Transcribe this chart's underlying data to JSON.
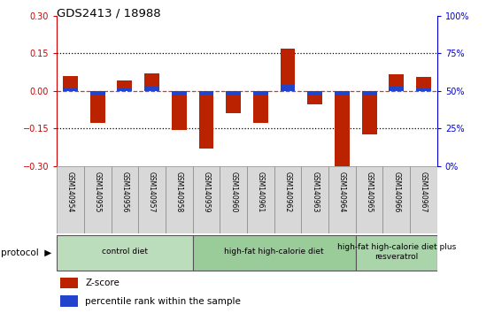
{
  "title": "GDS2413 / 18988",
  "samples": [
    "GSM140954",
    "GSM140955",
    "GSM140956",
    "GSM140957",
    "GSM140958",
    "GSM140959",
    "GSM140960",
    "GSM140961",
    "GSM140962",
    "GSM140963",
    "GSM140964",
    "GSM140965",
    "GSM140966",
    "GSM140967"
  ],
  "z_scores": [
    0.06,
    -0.13,
    0.04,
    0.07,
    -0.155,
    -0.23,
    -0.09,
    -0.13,
    0.17,
    -0.055,
    -0.3,
    -0.175,
    0.065,
    0.055
  ],
  "percentile_vals": [
    0.01,
    -0.02,
    0.01,
    0.015,
    -0.02,
    -0.015,
    -0.02,
    -0.02,
    0.025,
    -0.02,
    -0.02,
    -0.02,
    0.015,
    0.01
  ],
  "bar_color": "#bb2200",
  "blue_color": "#2244cc",
  "zero_line_color": "#dd3333",
  "ylim": [
    -0.3,
    0.3
  ],
  "yticks_left": [
    -0.3,
    -0.15,
    0.0,
    0.15,
    0.3
  ],
  "yticks_right": [
    0,
    25,
    50,
    75,
    100
  ],
  "ytick_right_labels": [
    "0%",
    "25%",
    "50%",
    "75%",
    "100%"
  ],
  "bar_width": 0.55,
  "protocol_groups": [
    {
      "label": "control diet",
      "start": 0,
      "end": 5,
      "color": "#bbddbb"
    },
    {
      "label": "high-fat high-calorie diet",
      "start": 5,
      "end": 11,
      "color": "#99cc99"
    },
    {
      "label": "high-fat high-calorie diet plus\nresveratrol",
      "start": 11,
      "end": 14,
      "color": "#aad4aa"
    }
  ],
  "left_axis_color": "#cc0000",
  "right_axis_color": "#0000cc",
  "legend_zscore": "Z-score",
  "legend_percentile": "percentile rank within the sample"
}
